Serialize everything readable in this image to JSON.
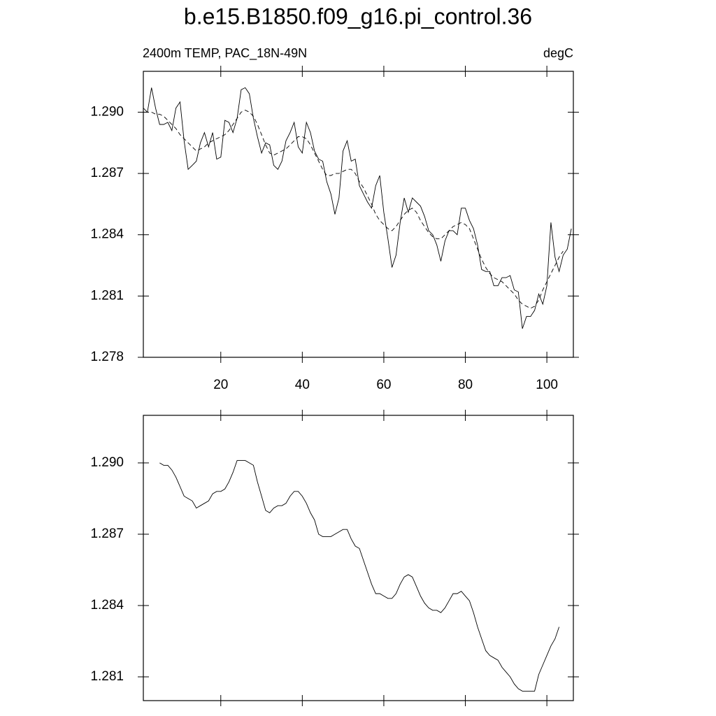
{
  "chart_data": [
    {
      "type": "line",
      "title": "b.e15.B1850.f09_g16.pi_control.36",
      "left_label": "2400m TEMP, PAC_18N-49N",
      "right_label": "degC",
      "xlim": [
        1,
        106.5
      ],
      "xticks": [
        20,
        40,
        60,
        80,
        100
      ],
      "show_xtick_labels": true,
      "ylim": [
        1.278,
        1.292
      ],
      "yticks": [
        1.278,
        1.281,
        1.284,
        1.287,
        {
          "value": 1.29,
          "label": "1.290"
        }
      ],
      "series": [
        {
          "color": "#000000",
          "dashed": false,
          "x": [
            1,
            2,
            3,
            4,
            5,
            6,
            7,
            8,
            9,
            10,
            11,
            12,
            13,
            14,
            15,
            16,
            17,
            18,
            19,
            20,
            21,
            22,
            23,
            24,
            25,
            26,
            27,
            28,
            29,
            30,
            31,
            32,
            33,
            34,
            35,
            36,
            37,
            38,
            39,
            40,
            41,
            42,
            43,
            44,
            45,
            46,
            47,
            48,
            49,
            50,
            51,
            52,
            53,
            54,
            55,
            56,
            57,
            58,
            59,
            60,
            61,
            62,
            63,
            64,
            65,
            66,
            67,
            68,
            69,
            70,
            71,
            72,
            73,
            74,
            75,
            76,
            77,
            78,
            79,
            80,
            81,
            82,
            83,
            84,
            85,
            86,
            87,
            88,
            89,
            90,
            91,
            92,
            93,
            94,
            95,
            96,
            97,
            98,
            99,
            100,
            101,
            102,
            103,
            104,
            105,
            106
          ],
          "values": [
            1.2902,
            1.29,
            1.2912,
            1.2902,
            1.2894,
            1.2894,
            1.2895,
            1.2891,
            1.2902,
            1.2905,
            1.2886,
            1.2872,
            1.2874,
            1.2876,
            1.2885,
            1.289,
            1.2883,
            1.289,
            1.2877,
            1.2878,
            1.2896,
            1.2895,
            1.289,
            1.2897,
            1.2911,
            1.2912,
            1.2909,
            1.2897,
            1.2888,
            1.288,
            1.2885,
            1.2884,
            1.2874,
            1.2872,
            1.2876,
            1.2886,
            1.289,
            1.2895,
            1.2883,
            1.288,
            1.2895,
            1.289,
            1.2881,
            1.2877,
            1.2876,
            1.2866,
            1.286,
            1.285,
            1.2858,
            1.2881,
            1.2886,
            1.2876,
            1.2877,
            1.2864,
            1.286,
            1.2856,
            1.2853,
            1.2864,
            1.2869,
            1.2851,
            1.2838,
            1.2824,
            1.283,
            1.2846,
            1.2858,
            1.2851,
            1.2858,
            1.2856,
            1.2854,
            1.2849,
            1.2842,
            1.284,
            1.2835,
            1.2827,
            1.2837,
            1.2842,
            1.2842,
            1.284,
            1.2853,
            1.2853,
            1.2847,
            1.2843,
            1.2835,
            1.2823,
            1.2822,
            1.2822,
            1.2815,
            1.2815,
            1.2819,
            1.2819,
            1.282,
            1.2813,
            1.2812,
            1.2794,
            1.28,
            1.28,
            1.2803,
            1.2811,
            1.2806,
            1.2815,
            1.2846,
            1.2829,
            1.2822,
            1.283,
            1.2833,
            1.2843
          ]
        },
        {
          "color": "#000000",
          "dashed": true,
          "x": [
            3,
            4,
            5,
            6,
            7,
            8,
            9,
            10,
            11,
            12,
            13,
            14,
            15,
            16,
            17,
            18,
            19,
            20,
            21,
            22,
            23,
            24,
            25,
            26,
            27,
            28,
            29,
            30,
            31,
            32,
            33,
            34,
            35,
            36,
            37,
            38,
            39,
            40,
            41,
            42,
            43,
            44,
            45,
            46,
            47,
            48,
            49,
            50,
            51,
            52,
            53,
            54,
            55,
            56,
            57,
            58,
            59,
            60,
            61,
            62,
            63,
            64,
            65,
            66,
            67,
            68,
            69,
            70,
            71,
            72,
            73,
            74,
            75,
            76,
            77,
            78,
            79,
            80,
            81,
            82,
            83,
            84,
            85,
            86,
            87,
            88,
            89,
            90,
            91,
            92,
            93,
            94,
            95,
            96,
            97,
            98,
            99,
            100,
            101,
            102,
            103,
            104
          ],
          "values": [
            1.29,
            1.2899,
            1.2899,
            1.2898,
            1.2896,
            1.2894,
            1.2892,
            1.2889,
            1.2887,
            1.2885,
            1.2883,
            1.2881,
            1.2882,
            1.2883,
            1.2885,
            1.2886,
            1.2887,
            1.2888,
            1.2889,
            1.2891,
            1.2894,
            1.2897,
            1.29,
            1.2901,
            1.29,
            1.2898,
            1.2894,
            1.2889,
            1.2884,
            1.288,
            1.2879,
            1.288,
            1.2881,
            1.2882,
            1.2884,
            1.2886,
            1.2888,
            1.2888,
            1.2887,
            1.2884,
            1.288,
            1.2876,
            1.2872,
            1.2869,
            1.2869,
            1.287,
            1.287,
            1.2871,
            1.2872,
            1.2872,
            1.287,
            1.2866,
            1.2863,
            1.2859,
            1.2855,
            1.285,
            1.2847,
            1.2845,
            1.2843,
            1.2842,
            1.2844,
            1.2847,
            1.285,
            1.2852,
            1.2853,
            1.2851,
            1.2847,
            1.2844,
            1.2841,
            1.2839,
            1.2838,
            1.2838,
            1.284,
            1.2842,
            1.2844,
            1.2845,
            1.2846,
            1.2845,
            1.2843,
            1.2838,
            1.2833,
            1.2828,
            1.2824,
            1.2821,
            1.2819,
            1.2818,
            1.2817,
            1.2815,
            1.2813,
            1.2811,
            1.2808,
            1.2806,
            1.2805,
            1.2804,
            1.2805,
            1.2808,
            1.2813,
            1.2817,
            1.2821,
            1.2825,
            1.2829,
            1.2832
          ]
        }
      ]
    },
    {
      "type": "line",
      "xlim": [
        1,
        106.5
      ],
      "xticks": [
        20,
        40,
        60,
        80,
        100
      ],
      "show_xtick_labels": false,
      "ylim": [
        1.28,
        1.292
      ],
      "yticks": [
        1.281,
        1.284,
        1.287,
        {
          "value": 1.29,
          "label": "1.290"
        }
      ],
      "series": [
        {
          "color": "#000000",
          "dashed": false,
          "x": [
            5,
            6,
            7,
            8,
            9,
            10,
            11,
            12,
            13,
            14,
            15,
            16,
            17,
            18,
            19,
            20,
            21,
            22,
            23,
            24,
            25,
            26,
            27,
            28,
            29,
            30,
            31,
            32,
            33,
            34,
            35,
            36,
            37,
            38,
            39,
            40,
            41,
            42,
            43,
            44,
            45,
            46,
            47,
            48,
            49,
            50,
            51,
            52,
            53,
            54,
            55,
            56,
            57,
            58,
            59,
            60,
            61,
            62,
            63,
            64,
            65,
            66,
            67,
            68,
            69,
            70,
            71,
            72,
            73,
            74,
            75,
            76,
            77,
            78,
            79,
            80,
            81,
            82,
            83,
            84,
            85,
            86,
            87,
            88,
            89,
            90,
            91,
            92,
            93,
            94,
            95,
            96,
            97,
            98,
            99,
            100,
            101,
            102,
            103
          ],
          "values": [
            1.29,
            1.2899,
            1.2899,
            1.2897,
            1.2894,
            1.289,
            1.2886,
            1.2885,
            1.2884,
            1.2881,
            1.2882,
            1.2883,
            1.2884,
            1.2887,
            1.2888,
            1.2888,
            1.2889,
            1.2892,
            1.2896,
            1.2901,
            1.2901,
            1.2901,
            1.29,
            1.2899,
            1.2892,
            1.2886,
            1.288,
            1.2879,
            1.2881,
            1.2882,
            1.2882,
            1.2883,
            1.2886,
            1.2888,
            1.2888,
            1.2886,
            1.2883,
            1.2879,
            1.2876,
            1.287,
            1.2869,
            1.2869,
            1.2869,
            1.287,
            1.2871,
            1.2872,
            1.2872,
            1.2868,
            1.2865,
            1.2864,
            1.2859,
            1.2854,
            1.2849,
            1.2845,
            1.2845,
            1.2844,
            1.2843,
            1.2843,
            1.2845,
            1.2849,
            1.2852,
            1.2853,
            1.2852,
            1.2848,
            1.2844,
            1.2841,
            1.2839,
            1.2838,
            1.2838,
            1.2837,
            1.2839,
            1.2842,
            1.2845,
            1.2845,
            1.2846,
            1.2844,
            1.2842,
            1.2837,
            1.2831,
            1.2826,
            1.2821,
            1.2819,
            1.2818,
            1.2817,
            1.2814,
            1.2812,
            1.281,
            1.2807,
            1.2805,
            1.2804,
            1.2804,
            1.2804,
            1.2804,
            1.2811,
            1.2815,
            1.2819,
            1.2823,
            1.2826,
            1.2831
          ]
        }
      ]
    }
  ]
}
